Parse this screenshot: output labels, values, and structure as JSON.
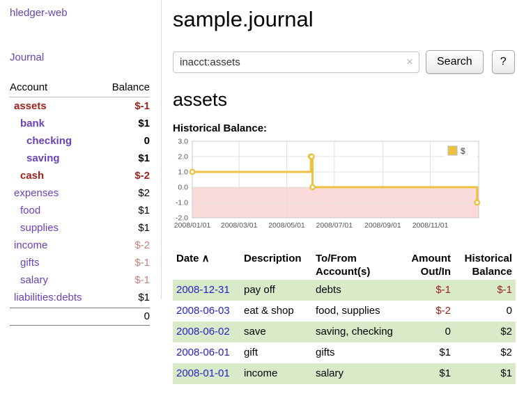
{
  "colors": {
    "link_purple": "#6a43b8",
    "link_blue": "#2424cc",
    "negative_dark": "#9e231e",
    "negative_light": "#c4817b",
    "row_green": "#d9eac9"
  },
  "app": {
    "title": "hledger-web"
  },
  "sidebar": {
    "journal_label": "Journal",
    "columns": {
      "account": "Account",
      "balance": "Balance"
    },
    "accounts": [
      {
        "name": "assets",
        "balance": "$-1",
        "depth": 0,
        "bold": true,
        "name_neg": true,
        "bal_neg": true
      },
      {
        "name": "bank",
        "balance": "$1",
        "depth": 1,
        "bold": true,
        "name_neg": false,
        "bal_neg": false
      },
      {
        "name": "checking",
        "balance": "0",
        "depth": 2,
        "bold": true,
        "name_neg": false,
        "bal_neg": false
      },
      {
        "name": "saving",
        "balance": "$1",
        "depth": 2,
        "bold": true,
        "name_neg": false,
        "bal_neg": false
      },
      {
        "name": "cash",
        "balance": "$-2",
        "depth": 1,
        "bold": true,
        "name_neg": true,
        "bal_neg": true
      },
      {
        "name": "expenses",
        "balance": "$2",
        "depth": 0,
        "bold": false,
        "name_neg": false,
        "bal_neg": false
      },
      {
        "name": "food",
        "balance": "$1",
        "depth": 1,
        "bold": false,
        "name_neg": false,
        "bal_neg": false
      },
      {
        "name": "supplies",
        "balance": "$1",
        "depth": 1,
        "bold": false,
        "name_neg": false,
        "bal_neg": false
      },
      {
        "name": "income",
        "balance": "$-2",
        "depth": 0,
        "bold": false,
        "name_neg": false,
        "bal_neg": true
      },
      {
        "name": "gifts",
        "balance": "$-1",
        "depth": 1,
        "bold": false,
        "name_neg": false,
        "bal_neg": true
      },
      {
        "name": "salary",
        "balance": "$-1",
        "depth": 1,
        "bold": false,
        "name_neg": false,
        "bal_neg": true
      },
      {
        "name": "liabilities:debts",
        "balance": "$1",
        "depth": 0,
        "bold": false,
        "name_neg": false,
        "bal_neg": false
      }
    ],
    "total": "0"
  },
  "main": {
    "title": "sample.journal",
    "search": {
      "value": "inacct:assets",
      "clear_icon": "×",
      "button_label": "Search",
      "help_label": "?"
    },
    "account_heading": "assets",
    "chart_title": "Historical Balance:",
    "register": {
      "headers": [
        {
          "key": "date",
          "line1": "Date",
          "line2": "",
          "align": "left",
          "sort_icon": "∧",
          "sortable": true
        },
        {
          "key": "description",
          "line1": "Description",
          "line2": "",
          "align": "left"
        },
        {
          "key": "accounts",
          "line1": "To/From",
          "line2": "Account(s)",
          "align": "left"
        },
        {
          "key": "amount",
          "line1": "Amount",
          "line2": "Out/In",
          "align": "right"
        },
        {
          "key": "balance",
          "line1": "Historical",
          "line2": "Balance",
          "align": "right"
        }
      ],
      "rows": [
        {
          "date": "2008-12-31",
          "description": "pay off",
          "accounts": "debts",
          "amount": "$-1",
          "amount_neg": true,
          "balance": "$-1",
          "balance_neg": true,
          "shade": true
        },
        {
          "date": "2008-06-03",
          "description": "eat & shop",
          "accounts": "food, supplies",
          "amount": "$-2",
          "amount_neg": true,
          "balance": "0",
          "balance_neg": false,
          "shade": false
        },
        {
          "date": "2008-06-02",
          "description": "save",
          "accounts": "saving, checking",
          "amount": "0",
          "amount_neg": false,
          "balance": "$2",
          "balance_neg": false,
          "shade": true
        },
        {
          "date": "2008-06-01",
          "description": "gift",
          "accounts": "gifts",
          "amount": "$1",
          "amount_neg": false,
          "balance": "$2",
          "balance_neg": false,
          "shade": false
        },
        {
          "date": "2008-01-01",
          "description": "income",
          "accounts": "salary",
          "amount": "$1",
          "amount_neg": false,
          "balance": "$1",
          "balance_neg": false,
          "shade": true
        }
      ]
    }
  },
  "chart_data": {
    "type": "line",
    "title": "Historical Balance",
    "step": true,
    "series": [
      {
        "name": "$",
        "color": "#edc240",
        "points": [
          {
            "date": "2008-01-01",
            "day": 1,
            "value": 1
          },
          {
            "date": "2008-06-01",
            "day": 153,
            "value": 2
          },
          {
            "date": "2008-06-02",
            "day": 154,
            "value": 2
          },
          {
            "date": "2008-06-03",
            "day": 155,
            "value": 0
          },
          {
            "date": "2008-12-31",
            "day": 366,
            "value": -1
          }
        ]
      }
    ],
    "x_ticks": [
      {
        "label": "2008/01/01",
        "day": 1
      },
      {
        "label": "2008/03/01",
        "day": 61
      },
      {
        "label": "2008/05/01",
        "day": 122
      },
      {
        "label": "2008/07/01",
        "day": 183
      },
      {
        "label": "2008/09/01",
        "day": 245
      },
      {
        "label": "2008/11/01",
        "day": 306
      }
    ],
    "y_ticks": [
      3,
      2,
      1,
      0,
      -1,
      -2
    ],
    "xlim": [
      1,
      368
    ],
    "ylim": [
      -2,
      3
    ],
    "grid_color": "#e0e0e0",
    "border_color": "#c8c8c8",
    "negative_region_color": "#fbdada",
    "tick_label_color": "#555555",
    "legend": {
      "label": "$",
      "box_color": "#edc240",
      "position": "top-right"
    }
  }
}
